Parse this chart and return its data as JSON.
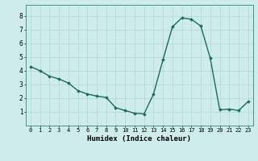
{
  "x_vals": [
    0,
    1,
    2,
    3,
    4,
    5,
    6,
    7,
    8,
    9,
    10,
    11,
    12,
    13,
    14,
    15,
    16,
    17,
    18,
    19,
    20,
    21,
    22,
    23
  ],
  "y_vals": [
    4.3,
    4.0,
    3.6,
    3.4,
    3.1,
    2.55,
    2.3,
    2.15,
    2.05,
    1.3,
    1.1,
    0.9,
    0.85,
    2.3,
    4.8,
    7.2,
    7.85,
    7.75,
    7.25,
    4.9,
    1.15,
    1.2,
    1.1,
    1.75
  ],
  "xlabel": "Humidex (Indice chaleur)",
  "xtick_labels": [
    "0",
    "1",
    "2",
    "3",
    "4",
    "5",
    "6",
    "7",
    "8",
    "9",
    "10",
    "11",
    "12",
    "13",
    "14",
    "15",
    "16",
    "17",
    "18",
    "19",
    "20",
    "21",
    "22",
    "23"
  ],
  "yticks": [
    1,
    2,
    3,
    4,
    5,
    6,
    7,
    8
  ],
  "ylim": [
    0.0,
    8.8
  ],
  "xlim": [
    -0.5,
    23.5
  ],
  "line_color": "#1a6b5a",
  "marker": "D",
  "marker_size": 1.8,
  "bg_color": "#cdecea",
  "grid_color": "#a8d8d5",
  "line_width": 1.0,
  "tick_fontsize": 5.0,
  "xlabel_fontsize": 6.5
}
